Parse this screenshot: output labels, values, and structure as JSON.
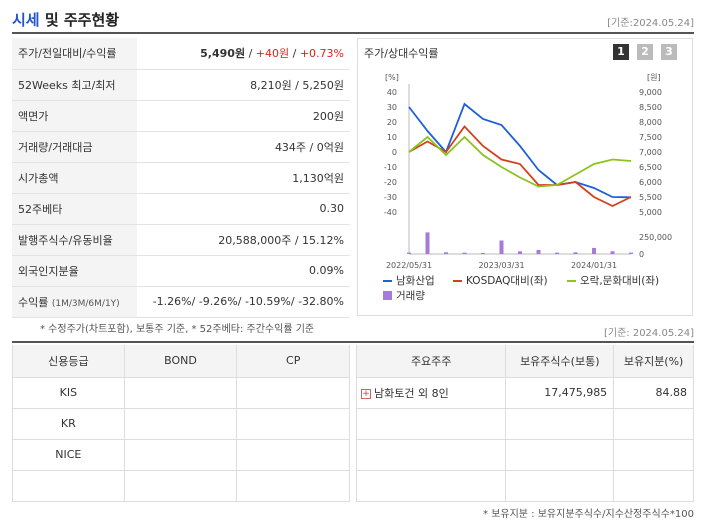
{
  "header": {
    "title_main": "시세",
    "title_rest": " 및 주주현황",
    "date": "[기준:2024.05.24]"
  },
  "quote_rows": [
    {
      "label": "주가/전일대비/수익률",
      "price": "5,490원",
      "change": "+40원",
      "rate": "+0.73%"
    },
    {
      "label": "52Weeks 최고/최저",
      "value": "8,210원 / 5,250원"
    },
    {
      "label": "액면가",
      "value": "200원"
    },
    {
      "label": "거래량/거래대금",
      "value": "434주 / 0억원"
    },
    {
      "label": "시가총액",
      "value": "1,130억원"
    },
    {
      "label": "52주베타",
      "value": "0.30"
    },
    {
      "label": "발행주식수/유동비율",
      "value": "20,588,000주 / 15.12%"
    },
    {
      "label": "외국인지분율",
      "value": "0.09%"
    },
    {
      "label": "수익률",
      "sub": "(1M/3M/6M/1Y)",
      "values": [
        "-1.26%",
        "-9.26%",
        "-10.59%",
        "-32.80%"
      ]
    }
  ],
  "chart_panel": {
    "title": "주가/상대수익률",
    "pages": [
      "1",
      "2",
      "3"
    ]
  },
  "chart_data": {
    "type": "line",
    "x": [
      "2022/05/31",
      "2022/07/31",
      "2022/09/30",
      "2022/11/30",
      "2023/01/31",
      "2023/03/31",
      "2023/05/31",
      "2023/07/31",
      "2023/09/30",
      "2023/11/30",
      "2024/01/31",
      "2024/03/31",
      "2024/05/24"
    ],
    "xticks": [
      "2022/05/31",
      "2023/03/31",
      "2024/01/31"
    ],
    "left_axis": {
      "unit": "[%]",
      "ticks": [
        40,
        30,
        20,
        10,
        0,
        -10,
        -20,
        -30,
        -40
      ],
      "range": [
        -40,
        40
      ]
    },
    "right_axis": {
      "unit": "[원]",
      "ticks": [
        "9,000",
        "8,500",
        "8,000",
        "7,500",
        "7,000",
        "6,500",
        "6,000",
        "5,500",
        "5,000"
      ],
      "range": [
        5000,
        9000
      ]
    },
    "volume_axis": {
      "ticks": [
        "250,000",
        "0"
      ],
      "range": [
        0,
        400000
      ]
    },
    "series": [
      {
        "name": "남화산업",
        "color": "#1f5fd8",
        "values": [
          8500,
          7700,
          7000,
          8600,
          8100,
          7900,
          7200,
          6400,
          5900,
          6000,
          5800,
          5500,
          5490
        ]
      },
      {
        "name": "KOSDAQ대비(좌)",
        "color": "#d4401a",
        "values": [
          0,
          7,
          0,
          17,
          4,
          -5,
          -8,
          -22,
          -22,
          -20,
          -30,
          -36,
          -30
        ]
      },
      {
        "name": "오락,문화대비(좌)",
        "color": "#8ec21d",
        "values": [
          0,
          10,
          -2,
          10,
          -2,
          -10,
          -17,
          -23,
          -22,
          -15,
          -8,
          -5,
          -6
        ]
      }
    ],
    "volume": {
      "name": "거래량",
      "color": "#a57ad8",
      "values": [
        20000,
        320000,
        25000,
        20000,
        15000,
        200000,
        40000,
        60000,
        20000,
        25000,
        90000,
        40000,
        20000
      ]
    }
  },
  "note_top": "* 수정주가(차트포함), 보통주 기준, * 52주베타: 주간수익률 기준",
  "date_mid": "[기준: 2024.05.24]",
  "credit": {
    "headers": [
      "신용등급",
      "BOND",
      "CP"
    ],
    "rows": [
      [
        "KIS",
        "",
        ""
      ],
      [
        "KR",
        "",
        ""
      ],
      [
        "NICE",
        "",
        ""
      ],
      [
        "",
        "",
        ""
      ]
    ]
  },
  "holders": {
    "headers": [
      "주요주주",
      "보유주식수(보통)",
      "보유지분(%)"
    ],
    "rows": [
      [
        "남화토건 외 8인",
        "17,475,985",
        "84.88"
      ],
      [
        "",
        "",
        ""
      ],
      [
        "",
        "",
        ""
      ],
      [
        "",
        "",
        ""
      ]
    ]
  },
  "note_bottom": "* 보유지분 : 보유지분주식수/지수산정주식수*100",
  "colors": {
    "accent": "#2255cc",
    "up": "#e02020",
    "down": "#1f5fd8"
  }
}
